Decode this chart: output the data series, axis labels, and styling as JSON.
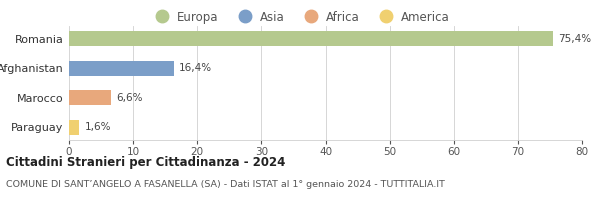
{
  "categories": [
    "Romania",
    "Afghanistan",
    "Marocco",
    "Paraguay"
  ],
  "values": [
    75.4,
    16.4,
    6.6,
    1.6
  ],
  "labels": [
    "75,4%",
    "16,4%",
    "6,6%",
    "1,6%"
  ],
  "colors": [
    "#b5c98e",
    "#7b9ec8",
    "#e8a87c",
    "#f0d070"
  ],
  "legend": [
    {
      "label": "Europa",
      "color": "#b5c98e"
    },
    {
      "label": "Asia",
      "color": "#7b9ec8"
    },
    {
      "label": "Africa",
      "color": "#e8a87c"
    },
    {
      "label": "America",
      "color": "#f0d070"
    }
  ],
  "xlim": [
    0,
    80
  ],
  "xticks": [
    0,
    10,
    20,
    30,
    40,
    50,
    60,
    70,
    80
  ],
  "title_bold": "Cittadini Stranieri per Cittadinanza - 2024",
  "subtitle": "COMUNE DI SANT’ANGELO A FASANELLA (SA) - Dati ISTAT al 1° gennaio 2024 - TUTTITALIA.IT",
  "background_color": "#ffffff",
  "grid_color": "#d0d0d0",
  "bar_height": 0.52
}
